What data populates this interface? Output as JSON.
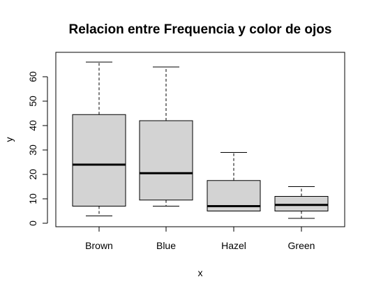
{
  "chart_data": {
    "type": "boxplot",
    "title": "Relacion entre Frequencia y color de ojos",
    "xlabel": "x",
    "ylabel": "y",
    "ylim": [
      0,
      70
    ],
    "yticks": [
      0,
      10,
      20,
      30,
      40,
      50,
      60
    ],
    "categories": [
      "Brown",
      "Blue",
      "Hazel",
      "Green"
    ],
    "boxes": [
      {
        "category": "Brown",
        "min": 3,
        "q1": 7,
        "median": 24,
        "q3": 44.5,
        "max": 66
      },
      {
        "category": "Blue",
        "min": 7,
        "q1": 9.5,
        "median": 20.5,
        "q3": 42,
        "max": 64
      },
      {
        "category": "Hazel",
        "min": 5,
        "q1": 5,
        "median": 7,
        "q3": 17.5,
        "max": 29
      },
      {
        "category": "Green",
        "min": 2,
        "q1": 5,
        "median": 7.5,
        "q3": 11,
        "max": 15
      }
    ],
    "box_fill": "#d3d3d3",
    "grid": false,
    "legend": "none"
  }
}
